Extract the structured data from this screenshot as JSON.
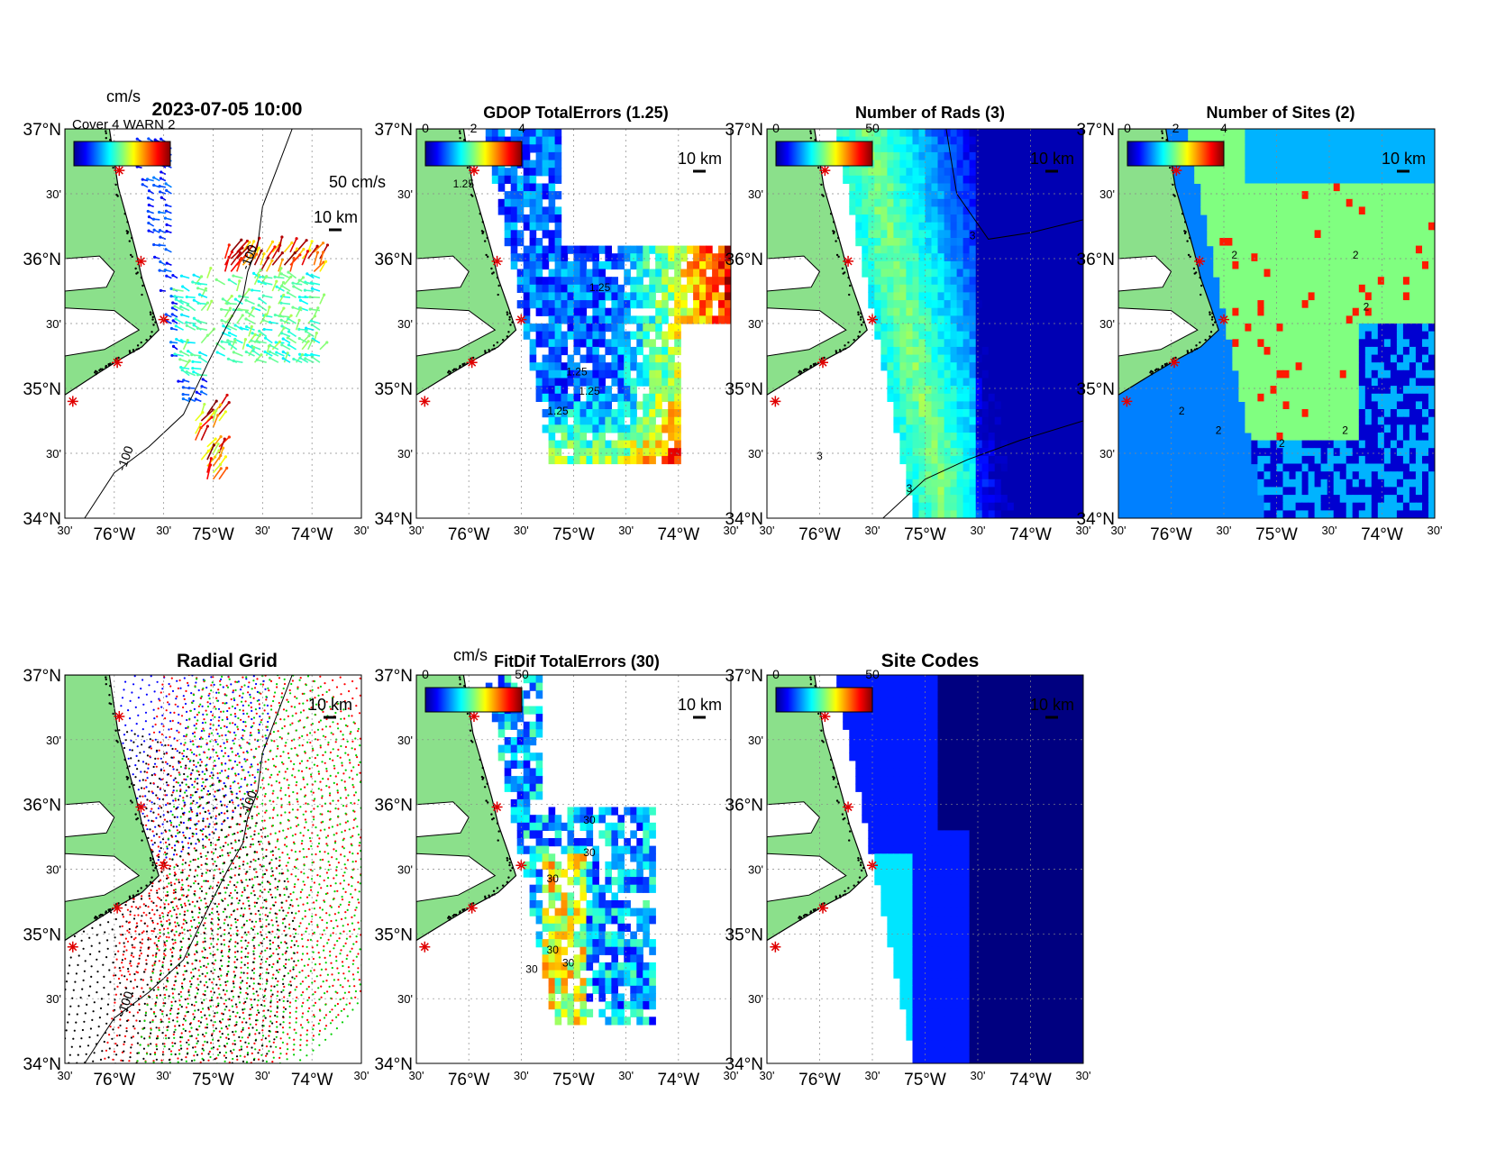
{
  "chart_data": [
    {
      "id": "currents",
      "type": "heatmap",
      "title": "2023-07-05 10:00",
      "colorbar": {
        "unit": "cm/s",
        "labels": []
      },
      "overlay_text": "Cover 4 WARN 2",
      "scale_label": "50 cm/s",
      "distance_label": "10 km",
      "contour_labels": [
        "-100",
        "-100"
      ],
      "sites": [
        "site",
        "site",
        "site",
        "site",
        "site"
      ]
    },
    {
      "id": "gdop",
      "type": "heatmap",
      "title": "GDOP TotalErrors (1.25)",
      "colorbar": {
        "unit": "",
        "labels": [
          "0",
          "2",
          "4"
        ]
      },
      "distance_label": "10 km",
      "contour_labels": [
        "1.25",
        "1.25",
        "1.25",
        "1.25",
        "1.25"
      ]
    },
    {
      "id": "nrads",
      "type": "heatmap",
      "title": "Number of Rads (3)",
      "colorbar": {
        "unit": "",
        "labels": [
          "0",
          "50"
        ]
      },
      "distance_label": "10 km",
      "contour_labels": [
        "3",
        "3",
        "3"
      ]
    },
    {
      "id": "nsites",
      "type": "heatmap",
      "title": "Number of Sites (2)",
      "colorbar": {
        "unit": "",
        "labels": [
          "0",
          "2",
          "4"
        ]
      },
      "distance_label": "10 km",
      "contour_labels": [
        "2",
        "2",
        "2",
        "2",
        "2",
        "2",
        "2"
      ]
    },
    {
      "id": "radialgrid",
      "type": "scatter",
      "title": "Radial Grid",
      "distance_label": "10 km",
      "contour_labels": [
        "-100",
        "-100"
      ]
    },
    {
      "id": "fitdif",
      "type": "heatmap",
      "title": "FitDif TotalErrors (30)",
      "colorbar": {
        "unit": "cm/s",
        "labels": [
          "0",
          "50"
        ]
      },
      "distance_label": "10 km",
      "contour_labels": [
        "30",
        "30",
        "30",
        "30",
        "30",
        "30"
      ]
    },
    {
      "id": "sitecodes",
      "type": "heatmap",
      "title": "Site Codes",
      "colorbar": {
        "unit": "",
        "labels": [
          "0",
          "50"
        ]
      },
      "distance_label": "10 km"
    }
  ],
  "axes": {
    "lat_ticks": [
      "37°N",
      "30'",
      "36°N",
      "30'",
      "35°N",
      "30'",
      "34°N"
    ],
    "lon_ticks": [
      "30'",
      "76°W",
      "30'",
      "75°W",
      "30'",
      "74°W",
      "30'"
    ],
    "xlim": [
      -76.5,
      -73.5
    ],
    "ylim": [
      34,
      37
    ]
  },
  "colors": {
    "land": "#8be08b",
    "jet_dark": "#00008f",
    "jet_blue": "#0000ff",
    "jet_cyan": "#00ffff",
    "jet_yellow": "#ffff00",
    "jet_red": "#ff0000",
    "jet_darkred": "#800000"
  }
}
